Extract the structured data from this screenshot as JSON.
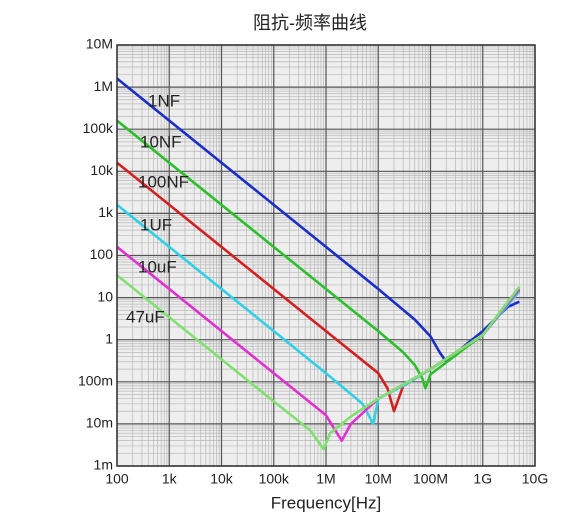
{
  "chart_data": {
    "type": "line",
    "title": "阻抗-频率曲线",
    "x_label": "Frequency[Hz]",
    "log_x": true,
    "log_y": true,
    "grid": true,
    "label_color": "#e03030",
    "xlim": [
      100,
      10000000000
    ],
    "ylim": [
      0.001,
      10000000
    ],
    "xticks": [
      100,
      {
        "value": 1000,
        "label": "1k"
      },
      {
        "value": 10000,
        "label": "10k"
      },
      {
        "value": 100000,
        "label": "100k"
      },
      {
        "value": 1000000,
        "label": "1M"
      },
      {
        "value": 10000000,
        "label": "10M"
      },
      {
        "value": 100000000,
        "label": "100M"
      },
      {
        "value": 1000000000,
        "label": "1G"
      },
      {
        "value": 10000000000,
        "label": "10G"
      }
    ],
    "yticks": [
      {
        "value": 0.001,
        "label": "1m"
      },
      {
        "value": 0.01,
        "label": "10m"
      },
      {
        "value": 0.1,
        "label": "100m"
      },
      1,
      10,
      100,
      {
        "value": 1000,
        "label": "1k"
      },
      {
        "value": 10000,
        "label": "10k"
      },
      {
        "value": 100000,
        "label": "100k"
      },
      {
        "value": 1000000,
        "label": "1M"
      },
      {
        "value": 10000000,
        "label": "10M"
      }
    ],
    "series": [
      {
        "name": "1NF",
        "color": "#1a2fc8",
        "x": [
          100,
          1000000,
          10000000,
          50000000,
          100000000,
          150000000,
          200000000,
          500000000,
          1000000000,
          3000000000,
          5000000000
        ],
        "values": [
          1600000,
          160,
          16,
          3,
          1.2,
          0.5,
          0.3,
          0.8,
          1.6,
          6,
          8
        ]
      },
      {
        "name": "10NF",
        "color": "#2cc02c",
        "x": [
          100,
          1000000,
          10000000,
          30000000,
          50000000,
          70000000,
          80000000,
          100000000,
          1000000000,
          5000000000
        ],
        "values": [
          160000,
          16,
          1.6,
          0.5,
          0.25,
          0.12,
          0.07,
          0.15,
          1.3,
          18
        ]
      },
      {
        "name": "100NF",
        "color": "#d42020",
        "x": [
          100,
          1000000,
          10000000,
          15000000,
          20000000,
          30000000,
          100000000,
          1000000000,
          5000000000
        ],
        "values": [
          16000,
          1.6,
          0.16,
          0.07,
          0.02,
          0.08,
          0.2,
          1.3,
          15
        ]
      },
      {
        "name": "1UF",
        "color": "#30d0e8",
        "x": [
          100,
          100000,
          1000000,
          5000000,
          8000000,
          10000000,
          30000000,
          100000000,
          1000000000,
          5000000000
        ],
        "values": [
          1600,
          1.6,
          0.16,
          0.03,
          0.01,
          0.04,
          0.08,
          0.2,
          1.3,
          14
        ]
      },
      {
        "name": "10uF",
        "color": "#e030d0",
        "x": [
          100,
          100000,
          1000000,
          2000000,
          3000000,
          10000000,
          100000000,
          1000000000,
          5000000000
        ],
        "values": [
          160,
          0.16,
          0.016,
          0.004,
          0.01,
          0.04,
          0.2,
          1.3,
          16
        ]
      },
      {
        "name": "47uF",
        "color": "#80e070",
        "x": [
          100,
          100000,
          500000,
          900000,
          1200000,
          3000000,
          10000000,
          100000000,
          1000000000,
          5000000000
        ],
        "values": [
          34,
          0.034,
          0.007,
          0.0025,
          0.006,
          0.015,
          0.04,
          0.2,
          1.3,
          18
        ]
      }
    ]
  }
}
